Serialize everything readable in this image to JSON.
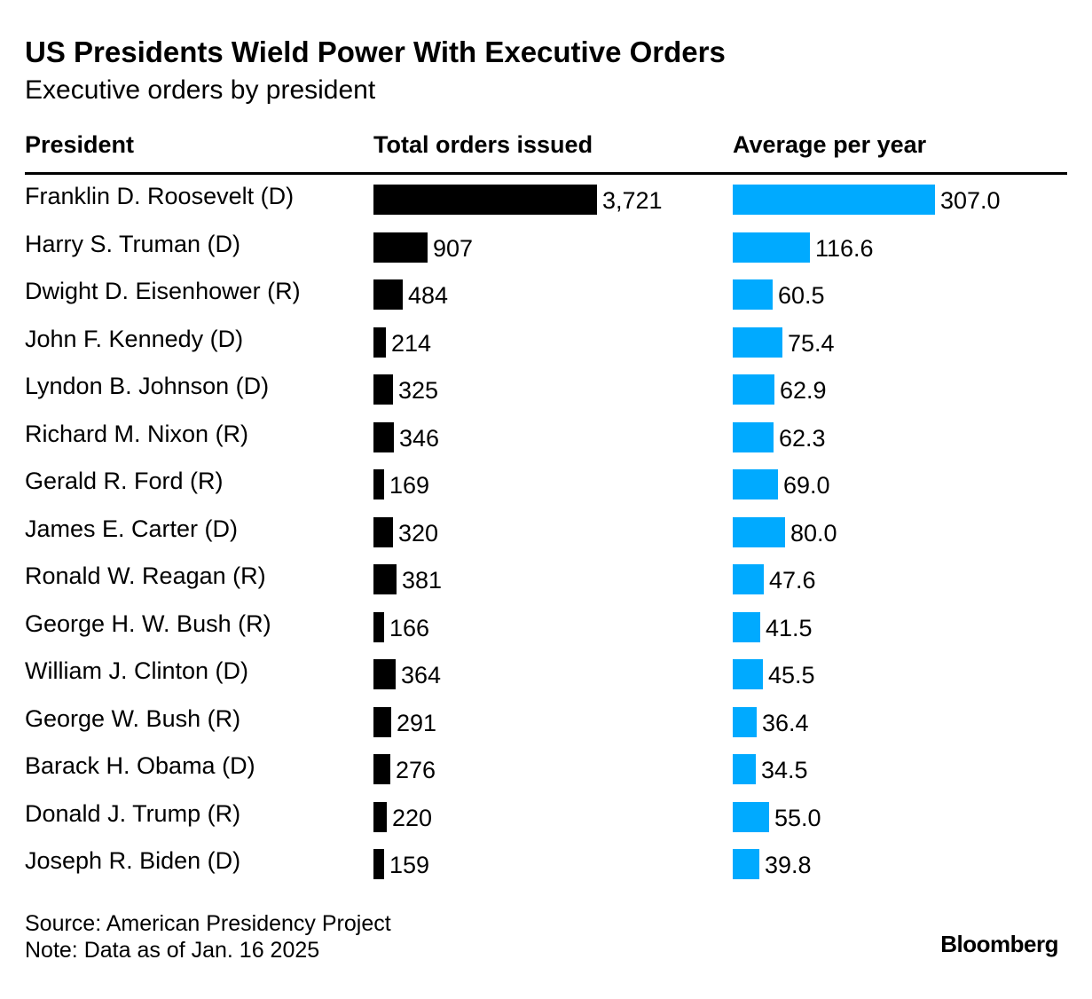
{
  "title": "US Presidents Wield Power With Executive Orders",
  "subtitle": "Executive orders by president",
  "columns": {
    "president": "President",
    "total": "Total orders issued",
    "average": "Average per year"
  },
  "colors": {
    "total_bar": "#000000",
    "average_bar": "#00aaff"
  },
  "chart_data": {
    "type": "bar",
    "title": "US Presidents Wield Power With Executive Orders",
    "subtitle": "Executive orders by president",
    "categories": [
      "Franklin D. Roosevelt (D)",
      "Harry S. Truman (D)",
      "Dwight D. Eisenhower (R)",
      "John F. Kennedy (D)",
      "Lyndon B. Johnson (D)",
      "Richard M. Nixon (R)",
      "Gerald R. Ford (R)",
      "James E. Carter (D)",
      "Ronald W. Reagan (R)",
      "George H. W. Bush (R)",
      "William J. Clinton (D)",
      "George W. Bush (R)",
      "Barack H. Obama (D)",
      "Donald J. Trump (R)",
      "Joseph R. Biden (D)"
    ],
    "series": [
      {
        "name": "Total orders issued",
        "values": [
          3721,
          907,
          484,
          214,
          325,
          346,
          169,
          320,
          381,
          166,
          364,
          291,
          276,
          220,
          159
        ],
        "labels": [
          "3,721",
          "907",
          "484",
          "214",
          "325",
          "346",
          "169",
          "320",
          "381",
          "166",
          "364",
          "291",
          "276",
          "220",
          "159"
        ]
      },
      {
        "name": "Average per year",
        "values": [
          307.0,
          116.6,
          60.5,
          75.4,
          62.9,
          62.3,
          69.0,
          80.0,
          47.6,
          41.5,
          45.5,
          36.4,
          34.5,
          55.0,
          39.8
        ],
        "labels": [
          "307.0",
          "116.6",
          "60.5",
          "75.4",
          "62.9",
          "62.3",
          "69.0",
          "80.0",
          "47.6",
          "41.5",
          "45.5",
          "36.4",
          "34.5",
          "55.0",
          "39.8"
        ]
      }
    ],
    "orientation": "horizontal"
  },
  "footer": {
    "source": "Source: American Presidency Project",
    "note": "Note: Data as of Jan. 16 2025",
    "brand": "Bloomberg"
  }
}
